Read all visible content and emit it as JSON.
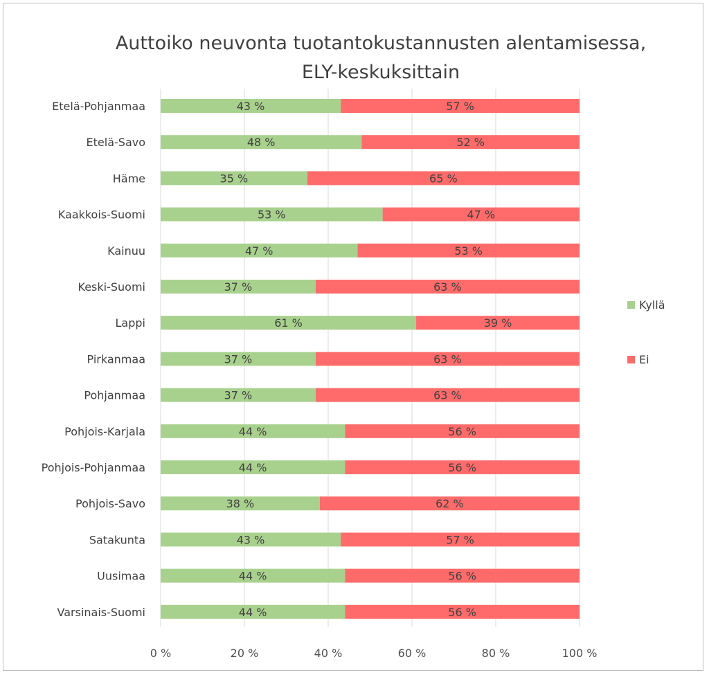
{
  "chart_data": {
    "type": "bar",
    "orientation": "horizontal",
    "stacked": true,
    "title_line1": "Auttoiko neuvonta tuotantokustannusten alentamisessa,",
    "title_line2": "ELY-keskuksittain",
    "xlim": [
      0,
      100
    ],
    "x_ticks": [
      "0 %",
      "20 %",
      "40 %",
      "60 %",
      "80 %",
      "100 %"
    ],
    "x_tick_values": [
      0,
      20,
      40,
      60,
      80,
      100
    ],
    "grid": "vertical",
    "legend_position": "right",
    "categories": [
      "Etelä-Pohjanmaa",
      "Etelä-Savo",
      "Häme",
      "Kaakkois-Suomi",
      "Kainuu",
      "Keski-Suomi",
      "Lappi",
      "Pirkanmaa",
      "Pohjanmaa",
      "Pohjois-Karjala",
      "Pohjois-Pohjanmaa",
      "Pohjois-Savo",
      "Satakunta",
      "Uusimaa",
      "Varsinais-Suomi"
    ],
    "series": [
      {
        "name": "Kyllä",
        "color": "#a9d18e",
        "values": [
          43,
          48,
          35,
          53,
          47,
          37,
          61,
          37,
          37,
          44,
          44,
          38,
          43,
          44,
          44
        ],
        "labels": [
          "43 %",
          "48 %",
          "35 %",
          "53 %",
          "47 %",
          "37 %",
          "61 %",
          "37 %",
          "37 %",
          "44 %",
          "44 %",
          "38 %",
          "43 %",
          "44 %",
          "44 %"
        ]
      },
      {
        "name": "Ei",
        "color": "#ff6b6b",
        "values": [
          57,
          52,
          65,
          47,
          53,
          63,
          39,
          63,
          63,
          56,
          56,
          62,
          57,
          56,
          56
        ],
        "labels": [
          "57 %",
          "52 %",
          "65 %",
          "47 %",
          "53 %",
          "63 %",
          "39 %",
          "63 %",
          "63 %",
          "56 %",
          "56 %",
          "62 %",
          "57 %",
          "56 %",
          "56 %"
        ]
      }
    ]
  }
}
